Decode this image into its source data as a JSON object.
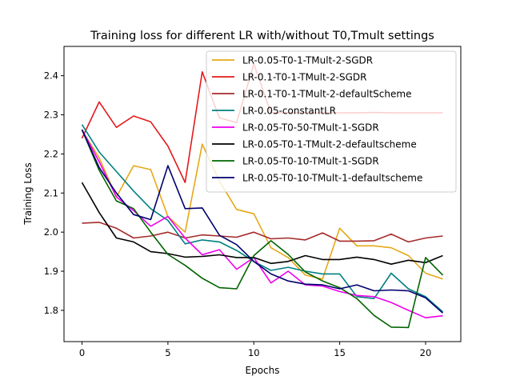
{
  "chart_data": {
    "type": "line",
    "title": "Training loss for different LR with/without T0,Tmult settings",
    "xlabel": "Epochs",
    "ylabel": "Training Loss",
    "xlim": [
      -1.05,
      22.05
    ],
    "ylim": [
      1.72,
      2.475
    ],
    "xticks": [
      0,
      5,
      10,
      15,
      20
    ],
    "yticks": [
      1.8,
      1.9,
      2.0,
      2.1,
      2.2,
      2.3,
      2.4
    ],
    "ytick_labels": [
      "1.8",
      "1.9",
      "2.0",
      "2.1",
      "2.2",
      "2.3",
      "2.4"
    ],
    "grid": false,
    "legend_placement": "top-right",
    "x": [
      0,
      1,
      2,
      3,
      4,
      5,
      6,
      7,
      8,
      9,
      10,
      11,
      12,
      13,
      14,
      15,
      16,
      17,
      18,
      19,
      20,
      21
    ],
    "series": [
      {
        "name": "LR-0.05-T0-1-TMult-2-SGDR",
        "color": "#e6a817",
        "values": [
          2.26,
          2.19,
          2.09,
          2.17,
          2.16,
          2.04,
          2.0,
          2.225,
          2.13,
          2.058,
          2.047,
          1.96,
          1.935,
          1.89,
          1.88,
          2.01,
          1.965,
          1.965,
          1.96,
          1.94,
          1.895,
          1.88
        ]
      },
      {
        "name": "LR-0.1-T0-1-TMult-2-SGDR",
        "color": "#e31a1c",
        "values": [
          2.24,
          2.333,
          2.268,
          2.297,
          2.282,
          2.22,
          2.127,
          2.41,
          2.292,
          2.28,
          2.43,
          2.305,
          2.305,
          2.305,
          2.305,
          2.305,
          2.305,
          2.306,
          2.305,
          2.305,
          2.305,
          2.305
        ]
      },
      {
        "name": "LR-0.1-T0-1-TMult-2-defaultScheme",
        "color": "#a52a2a",
        "values": [
          2.023,
          2.025,
          2.01,
          1.985,
          1.99,
          2.0,
          1.985,
          1.993,
          1.99,
          1.987,
          2.0,
          1.983,
          1.985,
          1.98,
          1.998,
          1.977,
          1.977,
          1.978,
          1.995,
          1.975,
          1.985,
          1.99
        ]
      },
      {
        "name": "LR-0.05-constantLR",
        "color": "#008080",
        "values": [
          2.275,
          2.205,
          2.155,
          2.105,
          2.06,
          2.03,
          1.97,
          1.98,
          1.975,
          1.953,
          1.925,
          1.902,
          1.91,
          1.9,
          1.893,
          1.893,
          1.835,
          1.83,
          1.895,
          1.855,
          1.835,
          1.796
        ]
      },
      {
        "name": "LR-0.05-T0-50-TMult-1-SGDR",
        "color": "#ee00ee",
        "values": [
          2.262,
          2.18,
          2.09,
          2.055,
          2.015,
          2.04,
          1.985,
          1.942,
          1.955,
          1.905,
          1.935,
          1.87,
          1.9,
          1.865,
          1.862,
          1.848,
          1.838,
          1.835,
          1.82,
          1.8,
          1.781,
          1.786
        ]
      },
      {
        "name": "LR-0.05-T0-1-TMult-2-defaultscheme",
        "color": "#000000",
        "values": [
          2.127,
          2.05,
          1.985,
          1.975,
          1.95,
          1.945,
          1.936,
          1.938,
          1.942,
          1.935,
          1.935,
          1.92,
          1.925,
          1.94,
          1.93,
          1.93,
          1.936,
          1.93,
          1.918,
          1.928,
          1.922,
          1.94
        ]
      },
      {
        "name": "LR-0.05-T0-10-TMult-1-SGDR",
        "color": "#006400",
        "values": [
          2.262,
          2.158,
          2.08,
          2.06,
          2.0,
          1.943,
          1.915,
          1.882,
          1.858,
          1.855,
          1.94,
          1.978,
          1.943,
          1.898,
          1.875,
          1.858,
          1.83,
          1.787,
          1.757,
          1.756,
          1.935,
          1.89
        ]
      },
      {
        "name": "LR-0.05-T0-10-TMult-1-defaultscheme",
        "color": "#00006e",
        "values": [
          2.262,
          2.165,
          2.1,
          2.045,
          2.032,
          2.17,
          2.06,
          2.062,
          1.992,
          1.968,
          1.925,
          1.893,
          1.875,
          1.867,
          1.865,
          1.855,
          1.865,
          1.85,
          1.852,
          1.85,
          1.832,
          1.793
        ]
      }
    ]
  }
}
